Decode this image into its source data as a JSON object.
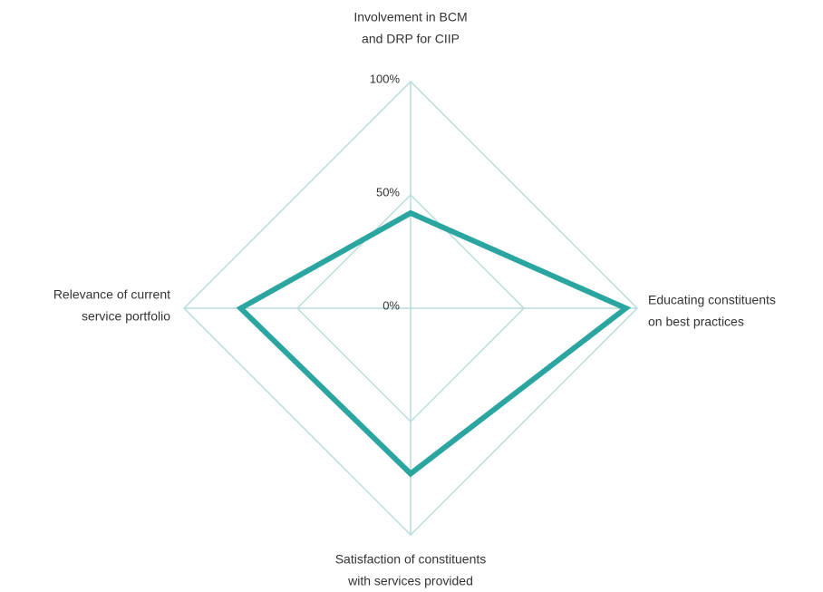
{
  "chart_data": {
    "type": "radar",
    "categories": [
      [
        "Involvement in BCM",
        "and DRP for CIIP"
      ],
      [
        "Educating constituents",
        "on best practices"
      ],
      [
        "Satisfaction of constituents",
        "with services provided"
      ],
      [
        "Relevance of current",
        "service portfolio"
      ]
    ],
    "values": [
      42,
      95,
      73,
      75
    ],
    "color": "#2aa5a0",
    "grid_color": "#b8dcdc",
    "rlim": [
      0,
      100
    ],
    "rticks": [
      {
        "value": 0,
        "label": "0%"
      },
      {
        "value": 50,
        "label": "50%"
      },
      {
        "value": 100,
        "label": "100%"
      }
    ],
    "grid": true
  }
}
